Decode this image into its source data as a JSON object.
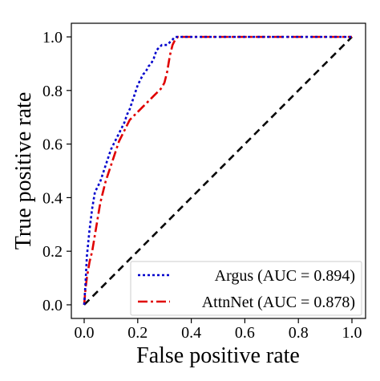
{
  "chart_data": {
    "type": "line",
    "xlabel": "False positive rate",
    "ylabel": "True positive rate",
    "xlim": [
      0.0,
      1.0
    ],
    "ylim": [
      0.0,
      1.0
    ],
    "x_ticks": [
      "0.0",
      "0.2",
      "0.4",
      "0.6",
      "0.8",
      "1.0"
    ],
    "y_ticks": [
      "0.0",
      "0.2",
      "0.4",
      "0.6",
      "0.8",
      "1.0"
    ],
    "grid": false,
    "legend_position": "bottom-right",
    "reference_line": {
      "x": [
        0.0,
        1.0
      ],
      "y": [
        0.0,
        1.0
      ],
      "color": "#000000",
      "style": "dashed"
    },
    "series": [
      {
        "name": "Argus (AUC = 0.894)",
        "color": "#0000cc",
        "style": "dotted",
        "x": [
          0.0,
          0.005,
          0.01,
          0.02,
          0.03,
          0.04,
          0.05,
          0.06,
          0.07,
          0.08,
          0.09,
          0.1,
          0.11,
          0.12,
          0.13,
          0.14,
          0.15,
          0.16,
          0.17,
          0.18,
          0.19,
          0.2,
          0.21,
          0.22,
          0.23,
          0.24,
          0.25,
          0.26,
          0.27,
          0.28,
          0.29,
          0.3,
          0.31,
          0.32,
          0.33,
          0.34,
          0.35,
          0.36,
          0.4,
          0.5,
          0.6,
          0.7,
          0.8,
          0.9,
          1.0
        ],
        "y": [
          0.0,
          0.08,
          0.18,
          0.28,
          0.36,
          0.42,
          0.44,
          0.46,
          0.49,
          0.52,
          0.55,
          0.58,
          0.6,
          0.62,
          0.64,
          0.66,
          0.68,
          0.71,
          0.73,
          0.76,
          0.79,
          0.82,
          0.84,
          0.86,
          0.87,
          0.89,
          0.9,
          0.92,
          0.95,
          0.96,
          0.97,
          0.97,
          0.97,
          0.98,
          0.99,
          1.0,
          1.0,
          1.0,
          1.0,
          1.0,
          1.0,
          1.0,
          1.0,
          1.0,
          1.0
        ]
      },
      {
        "name": "AttnNet (AUC = 0.878)",
        "color": "#e00000",
        "style": "dash-dot",
        "x": [
          0.0,
          0.005,
          0.01,
          0.02,
          0.03,
          0.04,
          0.05,
          0.06,
          0.07,
          0.08,
          0.09,
          0.1,
          0.11,
          0.12,
          0.13,
          0.14,
          0.15,
          0.16,
          0.17,
          0.18,
          0.19,
          0.2,
          0.21,
          0.22,
          0.23,
          0.24,
          0.25,
          0.26,
          0.27,
          0.28,
          0.29,
          0.3,
          0.31,
          0.32,
          0.33,
          0.34,
          0.35,
          0.36,
          0.37,
          0.4,
          0.5,
          0.6,
          0.7,
          0.8,
          0.9,
          1.0
        ],
        "y": [
          0.0,
          0.06,
          0.1,
          0.16,
          0.2,
          0.26,
          0.32,
          0.38,
          0.42,
          0.46,
          0.49,
          0.52,
          0.55,
          0.58,
          0.61,
          0.63,
          0.65,
          0.67,
          0.69,
          0.7,
          0.71,
          0.72,
          0.73,
          0.74,
          0.75,
          0.76,
          0.77,
          0.78,
          0.79,
          0.8,
          0.81,
          0.83,
          0.87,
          0.93,
          0.97,
          0.99,
          1.0,
          1.0,
          1.0,
          1.0,
          1.0,
          1.0,
          1.0,
          1.0,
          1.0,
          1.0
        ]
      }
    ]
  }
}
